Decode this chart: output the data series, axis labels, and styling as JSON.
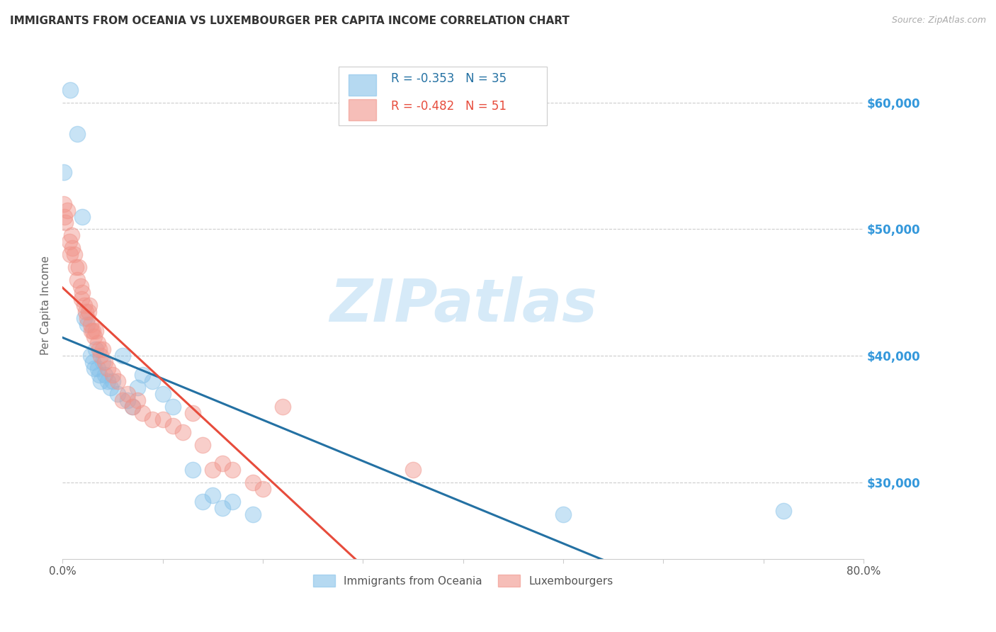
{
  "title": "IMMIGRANTS FROM OCEANIA VS LUXEMBOURGER PER CAPITA INCOME CORRELATION CHART",
  "source": "Source: ZipAtlas.com",
  "ylabel": "Per Capita Income",
  "xlim": [
    0.0,
    0.8
  ],
  "ylim": [
    24000,
    64000
  ],
  "yticks": [
    30000,
    40000,
    50000,
    60000
  ],
  "ytick_labels": [
    "$30,000",
    "$40,000",
    "$50,000",
    "$60,000"
  ],
  "xticks": [
    0.0,
    0.1,
    0.2,
    0.3,
    0.4,
    0.5,
    0.6,
    0.7,
    0.8
  ],
  "blue_R": -0.353,
  "blue_N": 35,
  "pink_R": -0.482,
  "pink_N": 51,
  "legend_label_blue": "Immigrants from Oceania",
  "legend_label_pink": "Luxembourgers",
  "blue_color": "#85c1e9",
  "pink_color": "#f1948a",
  "blue_line_color": "#2471a3",
  "pink_line_color": "#e74c3c",
  "watermark": "ZIPatlas",
  "watermark_color": "#d6eaf8",
  "background_color": "#ffffff",
  "title_color": "#333333",
  "axis_label_color": "#666666",
  "right_tick_color": "#3498db",
  "grid_color": "#cccccc",
  "blue_x": [
    0.001,
    0.008,
    0.015,
    0.02,
    0.022,
    0.025,
    0.028,
    0.03,
    0.032,
    0.033,
    0.035,
    0.037,
    0.038,
    0.04,
    0.042,
    0.045,
    0.048,
    0.05,
    0.055,
    0.06,
    0.065,
    0.07,
    0.075,
    0.08,
    0.09,
    0.1,
    0.11,
    0.13,
    0.14,
    0.15,
    0.16,
    0.17,
    0.19,
    0.5,
    0.72
  ],
  "blue_y": [
    54500,
    61000,
    57500,
    51000,
    43000,
    42500,
    40000,
    39500,
    39000,
    40500,
    39000,
    38500,
    38000,
    39500,
    38500,
    38000,
    37500,
    38000,
    37000,
    40000,
    36500,
    36000,
    37500,
    38500,
    38000,
    37000,
    36000,
    31000,
    28500,
    29000,
    28000,
    28500,
    27500,
    27500,
    27800
  ],
  "pink_x": [
    0.001,
    0.002,
    0.003,
    0.005,
    0.007,
    0.008,
    0.009,
    0.01,
    0.012,
    0.013,
    0.015,
    0.016,
    0.018,
    0.019,
    0.02,
    0.022,
    0.023,
    0.025,
    0.026,
    0.027,
    0.028,
    0.029,
    0.03,
    0.032,
    0.033,
    0.035,
    0.037,
    0.038,
    0.04,
    0.042,
    0.045,
    0.05,
    0.055,
    0.06,
    0.065,
    0.07,
    0.075,
    0.08,
    0.09,
    0.1,
    0.11,
    0.12,
    0.13,
    0.14,
    0.15,
    0.16,
    0.17,
    0.19,
    0.2,
    0.22,
    0.35
  ],
  "pink_y": [
    52000,
    51000,
    50500,
    51500,
    49000,
    48000,
    49500,
    48500,
    48000,
    47000,
    46000,
    47000,
    45500,
    44500,
    45000,
    44000,
    43500,
    43000,
    43500,
    44000,
    42500,
    42000,
    42000,
    41500,
    42000,
    41000,
    40500,
    40000,
    40500,
    39500,
    39000,
    38500,
    38000,
    36500,
    37000,
    36000,
    36500,
    35500,
    35000,
    35000,
    34500,
    34000,
    35500,
    33000,
    31000,
    31500,
    31000,
    30000,
    29500,
    36000,
    31000
  ]
}
